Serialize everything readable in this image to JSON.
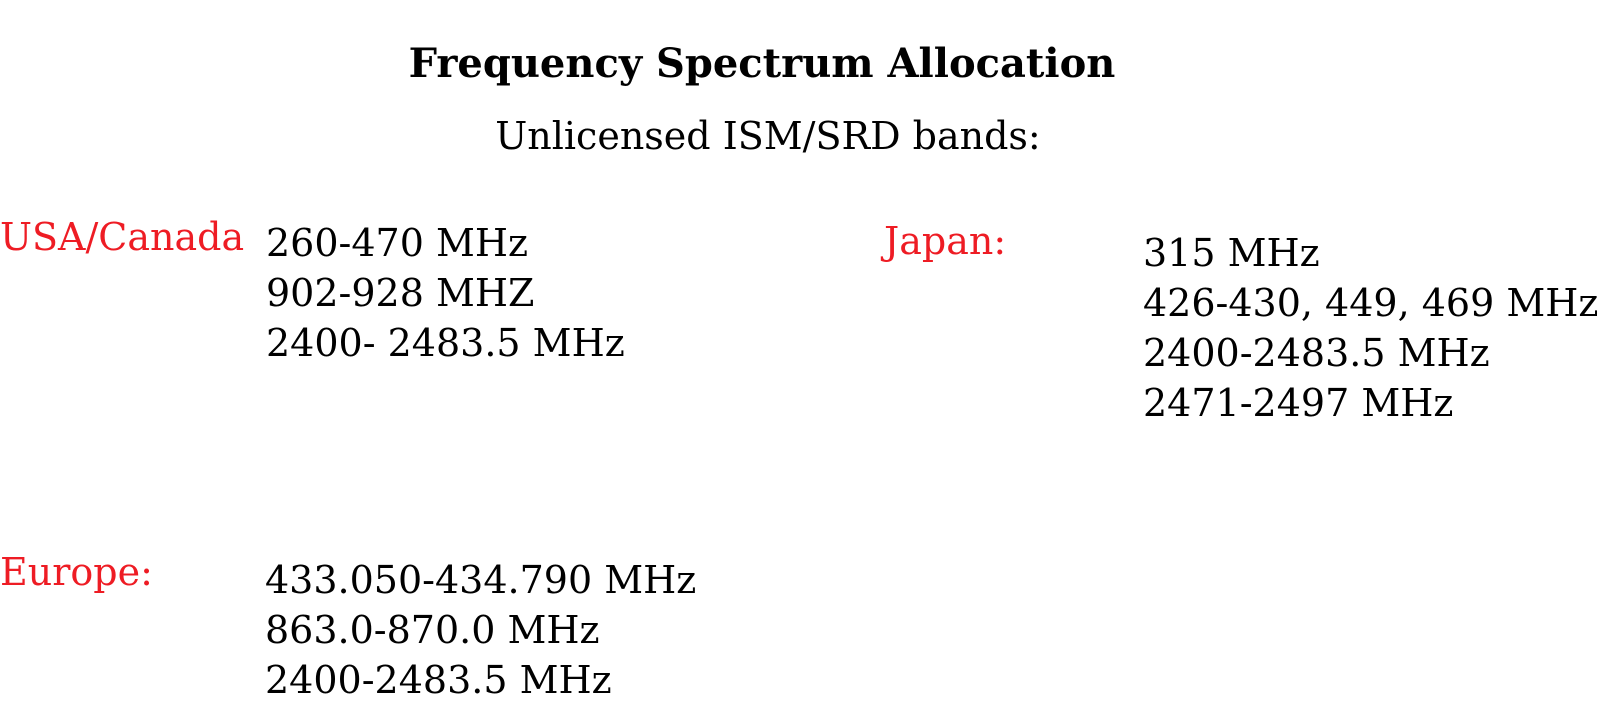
{
  "title": "Frequency Spectrum Allocation",
  "subtitle": "Unlicensed ISM/SRD bands:",
  "colors": {
    "region_label": "#ee1c24",
    "text": "#000000",
    "background": "#ffffff"
  },
  "regions": [
    {
      "label": "USA/Canada",
      "bands": [
        "260-470 MHz",
        "902-928 MHZ",
        "2400- 2483.5 MHz"
      ]
    },
    {
      "label": "Japan:",
      "bands": [
        "315 MHz",
        "426-430, 449, 469 MHz",
        "2400-2483.5 MHz",
        "2471-2497 MHz"
      ]
    },
    {
      "label": "Europe:",
      "bands": [
        "433.050-434.790 MHz",
        "863.0-870.0 MHz",
        "2400-2483.5 MHz"
      ]
    }
  ]
}
